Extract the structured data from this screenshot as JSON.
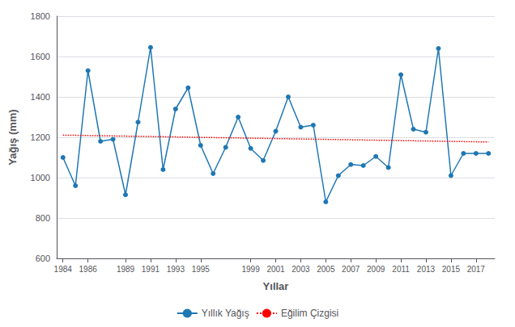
{
  "chart_data": {
    "type": "line",
    "xlabel": "Yıllar",
    "ylabel": "Yağış (mm)",
    "x": [
      1984,
      1985,
      1986,
      1987,
      1988,
      1989,
      1990,
      1991,
      1992,
      1993,
      1994,
      1995,
      1996,
      1997,
      1998,
      1999,
      2000,
      2001,
      2002,
      2003,
      2004,
      2005,
      2006,
      2007,
      2008,
      2009,
      2010,
      2011,
      2012,
      2013,
      2014,
      2015,
      2016,
      2017,
      2018
    ],
    "series": [
      {
        "name": "Yıllık Yağış",
        "color": "#1F77B4",
        "marker": "circle",
        "line_style": "solid",
        "values": [
          1100,
          960,
          1530,
          1180,
          1190,
          915,
          1275,
          1645,
          1040,
          1340,
          1445,
          1160,
          1020,
          1150,
          1300,
          1145,
          1085,
          1230,
          1400,
          1250,
          1260,
          880,
          1010,
          1065,
          1060,
          1105,
          1050,
          1510,
          1240,
          1225,
          1640,
          1010,
          1120,
          1120,
          1120
        ]
      },
      {
        "name": "Eğilim Çizgisi",
        "color": "#FF0000",
        "line_style": "dotted",
        "x": [
          1984,
          2018
        ],
        "values": [
          1210.5952381,
          1176.547619
        ]
      }
    ],
    "xlim": [
      1983.5,
      2018.5
    ],
    "xticks": [
      1984,
      1986,
      1989,
      1991,
      1993,
      1995,
      1999,
      2001,
      2003,
      2005,
      2007,
      2009,
      2011,
      2013,
      2015,
      2017
    ],
    "ylim": [
      600,
      1800
    ],
    "yticks": [
      600,
      800,
      1000,
      1200,
      1400,
      1600,
      1800
    ],
    "grid": true,
    "legend": "bottom"
  }
}
